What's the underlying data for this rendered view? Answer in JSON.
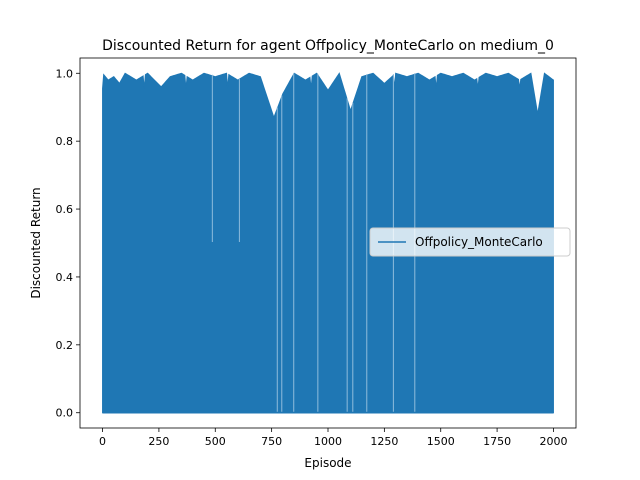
{
  "chart_data": {
    "type": "line",
    "title": "Discounted Return for agent Offpolicy_MonteCarlo on medium_0",
    "xlabel": "Episode",
    "ylabel": "Discounted Return",
    "xlim": [
      -100,
      2100
    ],
    "ylim": [
      -0.045,
      1.045
    ],
    "xticks": [
      0,
      250,
      500,
      750,
      1000,
      1250,
      1500,
      1750,
      2000
    ],
    "xtick_labels": [
      "0",
      "250",
      "500",
      "750",
      "1000",
      "1250",
      "1500",
      "1750",
      "2000"
    ],
    "yticks": [
      0.0,
      0.2,
      0.4,
      0.6,
      0.8,
      1.0
    ],
    "ytick_labels": [
      "0.0",
      "0.2",
      "0.4",
      "0.6",
      "0.8",
      "1.0"
    ],
    "grid": false,
    "legend_position": "center-right",
    "series": [
      {
        "name": "Offpolicy_MonteCarlo",
        "color": "#1f77b4",
        "x_start": 0,
        "x_end": 2000,
        "description_values": "Per-episode discounted return oscillating between ~0.0 and ~1.0 across 2000 episodes",
        "upper_envelope": [
          [
            0,
            1.0
          ],
          [
            25,
            0.98
          ],
          [
            50,
            0.99
          ],
          [
            75,
            0.97
          ],
          [
            100,
            1.0
          ],
          [
            150,
            0.98
          ],
          [
            200,
            1.0
          ],
          [
            260,
            0.96
          ],
          [
            300,
            0.99
          ],
          [
            350,
            1.0
          ],
          [
            400,
            0.98
          ],
          [
            450,
            1.0
          ],
          [
            500,
            0.99
          ],
          [
            550,
            1.0
          ],
          [
            600,
            0.98
          ],
          [
            650,
            1.0
          ],
          [
            700,
            0.99
          ],
          [
            760,
            0.87
          ],
          [
            800,
            0.94
          ],
          [
            850,
            1.0
          ],
          [
            900,
            0.98
          ],
          [
            950,
            1.0
          ],
          [
            1000,
            0.95
          ],
          [
            1050,
            1.0
          ],
          [
            1100,
            0.89
          ],
          [
            1150,
            0.99
          ],
          [
            1200,
            1.0
          ],
          [
            1250,
            0.97
          ],
          [
            1300,
            1.0
          ],
          [
            1350,
            0.99
          ],
          [
            1400,
            1.0
          ],
          [
            1450,
            0.98
          ],
          [
            1500,
            1.0
          ],
          [
            1550,
            0.99
          ],
          [
            1600,
            1.0
          ],
          [
            1650,
            0.98
          ],
          [
            1700,
            1.0
          ],
          [
            1750,
            0.99
          ],
          [
            1800,
            1.0
          ],
          [
            1850,
            0.98
          ],
          [
            1900,
            1.0
          ],
          [
            1930,
            0.88
          ],
          [
            1960,
            1.0
          ],
          [
            2000,
            0.98
          ]
        ],
        "lower_level": 0.0,
        "gaps": [
          [
            487,
            0.5
          ],
          [
            607,
            0.5
          ],
          [
            775,
            0.0
          ],
          [
            795,
            0.0
          ],
          [
            848,
            0.0
          ],
          [
            955,
            0.0
          ],
          [
            1085,
            0.0
          ],
          [
            1110,
            0.0
          ],
          [
            1172,
            0.0
          ],
          [
            1290,
            0.0
          ],
          [
            1385,
            0.0
          ]
        ]
      }
    ]
  }
}
